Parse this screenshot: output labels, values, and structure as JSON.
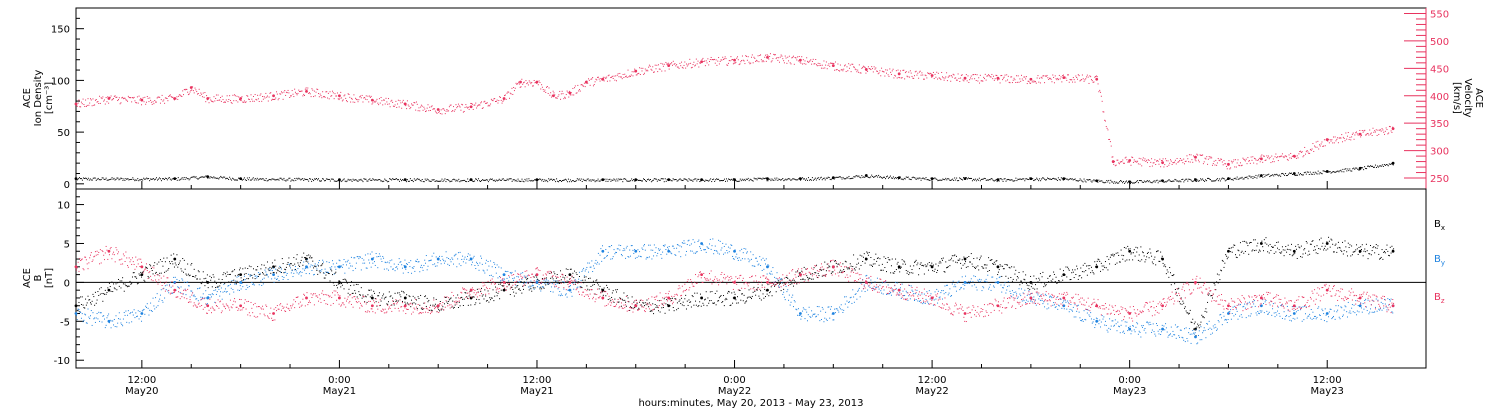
{
  "colors": {
    "black": "#000000",
    "pink": "#e8335f",
    "blue": "#1f83e0"
  },
  "chart_data": [
    {
      "type": "scatter",
      "panel": "top",
      "ylabel_lines": [
        "ACE",
        "Ion Density",
        "[cm⁻³]"
      ],
      "ylabel_right_lines": [
        "ACE",
        "Velocity",
        "[km/s]"
      ],
      "ylim": [
        -5,
        170
      ],
      "yticks": [
        0,
        50,
        100,
        150
      ],
      "ylim_right": [
        230,
        560
      ],
      "yticks_right": [
        250,
        300,
        350,
        400,
        450,
        500,
        550
      ],
      "x_range_hours": [
        -16,
        66
      ],
      "series": [
        {
          "key": "density",
          "color": "#000000",
          "x": [
            -16,
            -10,
            -8,
            -6,
            0,
            4,
            8,
            12,
            16,
            18,
            20,
            22,
            24,
            26,
            28,
            30,
            32,
            34,
            36,
            38,
            40,
            42,
            44,
            46,
            48,
            50,
            52,
            54,
            56,
            58,
            60,
            62,
            64
          ],
          "y": [
            5,
            5,
            7,
            5,
            4,
            4,
            4,
            4,
            4,
            4,
            4,
            4,
            4,
            5,
            5,
            6,
            8,
            6,
            5,
            5,
            4,
            5,
            5,
            3,
            2,
            3,
            4,
            5,
            8,
            10,
            12,
            15,
            20
          ]
        },
        {
          "key": "velocity",
          "color": "#e8335f",
          "x": [
            -16,
            -14,
            -12,
            -10,
            -9,
            -8,
            -6,
            -4,
            -2,
            0,
            2,
            4,
            6,
            8,
            10,
            11,
            12,
            13,
            14,
            15,
            16,
            18,
            20,
            22,
            24,
            26,
            28,
            30,
            32,
            34,
            36,
            38,
            40,
            42,
            44,
            46,
            47,
            48,
            50,
            52,
            54,
            56,
            58,
            60,
            62,
            64
          ],
          "y": [
            385,
            395,
            392,
            395,
            415,
            395,
            395,
            400,
            408,
            400,
            392,
            385,
            375,
            380,
            395,
            425,
            425,
            400,
            405,
            425,
            430,
            445,
            455,
            462,
            465,
            470,
            465,
            455,
            448,
            440,
            437,
            432,
            432,
            430,
            433,
            430,
            280,
            282,
            278,
            288,
            275,
            285,
            290,
            320,
            330,
            340
          ]
        }
      ]
    },
    {
      "type": "scatter",
      "panel": "bottom",
      "ylabel_lines": [
        "ACE",
        "B",
        "[nT]"
      ],
      "ylim": [
        -11,
        12
      ],
      "yticks": [
        -10,
        -5,
        0,
        5,
        10
      ],
      "x_range_hours": [
        -16,
        66
      ],
      "xticks": [
        {
          "hour": -12,
          "time": "12:00",
          "date": "May20"
        },
        {
          "hour": 0,
          "time": "0:00",
          "date": "May21"
        },
        {
          "hour": 12,
          "time": "12:00",
          "date": "May21"
        },
        {
          "hour": 24,
          "time": "0:00",
          "date": "May22"
        },
        {
          "hour": 36,
          "time": "12:00",
          "date": "May22"
        },
        {
          "hour": 48,
          "time": "0:00",
          "date": "May23"
        },
        {
          "hour": 60,
          "time": "12:00",
          "date": "May23"
        }
      ],
      "xlabel": "hours:minutes, May 20, 2013 - May 23, 2013",
      "series": [
        {
          "name": "Bx",
          "legend_main": "B",
          "legend_sub": "x",
          "color": "#000000",
          "x": [
            -16,
            -14,
            -12,
            -10,
            -8,
            -6,
            -4,
            -2,
            0,
            2,
            4,
            6,
            8,
            10,
            12,
            14,
            16,
            18,
            20,
            22,
            24,
            26,
            28,
            30,
            32,
            34,
            36,
            38,
            40,
            42,
            44,
            46,
            48,
            50,
            52,
            54,
            56,
            58,
            60,
            62,
            64
          ],
          "y": [
            -3,
            -1,
            1,
            3,
            0,
            1,
            2,
            3,
            0,
            -2,
            -2,
            -3,
            -2,
            -1,
            0,
            1,
            -1,
            -3,
            -3,
            -2,
            -2,
            -1,
            1,
            2,
            3,
            2,
            2,
            3,
            2,
            0,
            1,
            2,
            4,
            3,
            -6,
            4,
            5,
            4,
            5,
            4,
            4
          ]
        },
        {
          "name": "By",
          "legend_main": "B",
          "legend_sub": "y",
          "color": "#1f83e0",
          "x": [
            -16,
            -14,
            -12,
            -10,
            -8,
            -6,
            -4,
            -2,
            0,
            2,
            4,
            6,
            8,
            10,
            12,
            14,
            16,
            18,
            20,
            22,
            24,
            26,
            28,
            30,
            32,
            34,
            36,
            38,
            40,
            42,
            44,
            46,
            48,
            50,
            52,
            54,
            56,
            58,
            60,
            62,
            64
          ],
          "y": [
            -4,
            -5,
            -4,
            0,
            -2,
            0,
            1,
            2,
            2,
            3,
            2,
            3,
            3,
            1,
            0,
            -1,
            4,
            4,
            4,
            5,
            4,
            2,
            -4,
            -4,
            0,
            -1,
            -2,
            0,
            0,
            -2,
            -3,
            -5,
            -6,
            -6,
            -7,
            -4,
            -3,
            -4,
            -4,
            -3,
            -3
          ]
        },
        {
          "name": "Bz",
          "legend_main": "B",
          "legend_sub": "z",
          "color": "#e8335f",
          "x": [
            -16,
            -14,
            -12,
            -10,
            -8,
            -6,
            -4,
            -2,
            0,
            2,
            4,
            6,
            8,
            10,
            12,
            14,
            16,
            18,
            20,
            22,
            24,
            26,
            28,
            30,
            32,
            34,
            36,
            38,
            40,
            42,
            44,
            46,
            48,
            50,
            52,
            54,
            56,
            58,
            60,
            62,
            64
          ],
          "y": [
            2,
            4,
            2,
            -1,
            -3,
            -3,
            -4,
            -2,
            -2,
            -3,
            -3,
            -3,
            -1,
            0,
            1,
            0,
            -2,
            -3,
            -2,
            1,
            0,
            0,
            1,
            2,
            0,
            -1,
            -2,
            -4,
            -3,
            -2,
            -2,
            -3,
            -4,
            -3,
            0,
            -3,
            -2,
            -3,
            -1,
            -2,
            -3
          ]
        }
      ]
    }
  ]
}
